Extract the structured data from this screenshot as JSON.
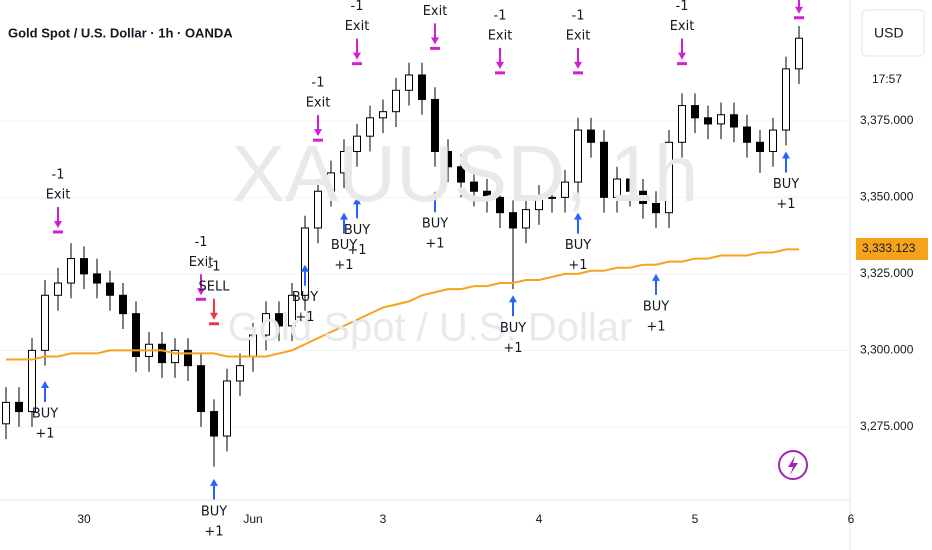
{
  "chart_data": {
    "type": "candlestick",
    "title": "Gold Spot / U.S. Dollar · 1h · OANDA",
    "watermark": "XAUUSD, 1h",
    "watermark_subtitle": "Gold Spot / U.S. Dollar",
    "currency": "USD",
    "countdown": "17:57",
    "ma_label": {
      "value": 3333.123,
      "label": "3,333.123"
    },
    "categories": [
      null,
      null,
      null,
      null,
      null,
      null,
      "30",
      null,
      null,
      null,
      null,
      null,
      null,
      null,
      null,
      null,
      null,
      null,
      null,
      "Jun",
      null,
      null,
      null,
      null,
      null,
      null,
      null,
      null,
      null,
      "3",
      null,
      null,
      null,
      null,
      null,
      null,
      null,
      null,
      null,
      null,
      null,
      "4",
      null,
      null,
      null,
      null,
      null,
      null,
      null,
      null,
      null,
      null,
      null,
      "5",
      null,
      null,
      null,
      null,
      null,
      null,
      null,
      null,
      null,
      null,
      null,
      "6"
    ],
    "open": [
      3276,
      3283,
      3280,
      3300,
      3318,
      3322,
      3330,
      3325,
      3322,
      3318,
      3312,
      3298,
      3302,
      3296,
      3300,
      3295,
      3280,
      3272,
      3290,
      3298,
      3305,
      3312,
      3308,
      3318,
      3340,
      3352,
      3358,
      3365,
      3370,
      3376,
      3378,
      3385,
      3390,
      3382,
      3365,
      3360,
      3355,
      3352,
      3350,
      3345,
      3340,
      3346,
      3350,
      3350,
      3355,
      3372,
      3368,
      3350,
      3356,
      3352,
      3348,
      3345,
      3368,
      3380,
      3376,
      3374,
      3377,
      3373,
      3368,
      3365,
      3372,
      3392,
      null,
      null,
      null,
      null
    ],
    "high": [
      3288,
      3288,
      3304,
      3323,
      3327,
      3335,
      3334,
      3330,
      3326,
      3322,
      3316,
      3306,
      3306,
      3304,
      3304,
      3299,
      3284,
      3294,
      3299,
      3309,
      3316,
      3316,
      3322,
      3344,
      3356,
      3362,
      3369,
      3374,
      3380,
      3382,
      3389,
      3394,
      3394,
      3386,
      3369,
      3364,
      3359,
      3356,
      3354,
      3349,
      3350,
      3354,
      3354,
      3359,
      3376,
      3376,
      3372,
      3360,
      3360,
      3356,
      3352,
      3372,
      3384,
      3384,
      3380,
      3381,
      3381,
      3377,
      3372,
      3376,
      3396,
      3406,
      null,
      null,
      null,
      null
    ],
    "low": [
      3271,
      3275,
      3275,
      3295,
      3313,
      3317,
      3320,
      3317,
      3313,
      3307,
      3293,
      3293,
      3291,
      3291,
      3290,
      3275,
      3262,
      3267,
      3285,
      3293,
      3300,
      3303,
      3303,
      3313,
      3335,
      3347,
      3353,
      3360,
      3365,
      3371,
      3373,
      3380,
      3377,
      3360,
      3355,
      3350,
      3347,
      3345,
      3340,
      3320,
      3335,
      3341,
      3345,
      3345,
      3350,
      3363,
      3345,
      3345,
      3347,
      3343,
      3340,
      3340,
      3363,
      3371,
      3369,
      3369,
      3368,
      3363,
      3358,
      3360,
      3367,
      3387,
      null,
      null,
      null,
      null
    ],
    "close": [
      3283,
      3280,
      3300,
      3318,
      3322,
      3330,
      3325,
      3322,
      3318,
      3312,
      3298,
      3302,
      3296,
      3300,
      3295,
      3280,
      3272,
      3290,
      3295,
      3305,
      3312,
      3308,
      3318,
      3340,
      3352,
      3358,
      3365,
      3370,
      3376,
      3378,
      3385,
      3390,
      3382,
      3365,
      3360,
      3355,
      3352,
      3350,
      3345,
      3340,
      3346,
      3350,
      3350,
      3355,
      3372,
      3368,
      3350,
      3356,
      3352,
      3348,
      3345,
      3368,
      3380,
      3376,
      3374,
      3377,
      3373,
      3368,
      3365,
      3372,
      3392,
      3402,
      null,
      null,
      null,
      null
    ],
    "ma": {
      "color": "#f7a21b",
      "values": [
        3297,
        3297,
        3297,
        3298,
        3298,
        3299,
        3299,
        3299,
        3300,
        3300,
        3300,
        3300,
        3300,
        3299,
        3299,
        3299,
        3299,
        3298,
        3298,
        3298,
        3298,
        3299,
        3300,
        3302,
        3304,
        3306,
        3308,
        3310,
        3312,
        3314,
        3315,
        3316,
        3318,
        3319,
        3320,
        3320,
        3321,
        3321,
        3322,
        3322,
        3323,
        3323,
        3324,
        3325,
        3325,
        3326,
        3326,
        3327,
        3327,
        3328,
        3328,
        3329,
        3329,
        3330,
        3330,
        3331,
        3331,
        3331,
        3332,
        3332,
        3333,
        3333,
        null,
        null,
        null,
        null
      ]
    },
    "signals": {
      "buy": {
        "label": "BUY",
        "qty": "+1",
        "color": "#2962ff",
        "values": [
          null,
          null,
          null,
          3290,
          null,
          null,
          null,
          null,
          null,
          null,
          null,
          null,
          null,
          null,
          null,
          null,
          3258,
          null,
          null,
          null,
          null,
          null,
          null,
          3328,
          null,
          null,
          3345,
          3350,
          null,
          null,
          null,
          null,
          null,
          3352,
          null,
          null,
          null,
          null,
          null,
          3318,
          null,
          null,
          null,
          null,
          3345,
          null,
          null,
          null,
          null,
          null,
          3325,
          null,
          null,
          null,
          null,
          null,
          null,
          null,
          null,
          null,
          3365,
          null,
          null,
          null,
          null,
          null
        ]
      },
      "exit": {
        "label": "Exit",
        "qty": "-1",
        "color": "#d21fd6",
        "values": [
          null,
          null,
          null,
          null,
          3340,
          null,
          null,
          null,
          null,
          null,
          null,
          null,
          null,
          null,
          null,
          3318,
          null,
          null,
          null,
          null,
          null,
          null,
          null,
          null,
          3370,
          null,
          null,
          3395,
          null,
          null,
          null,
          null,
          null,
          3400,
          null,
          null,
          null,
          null,
          3392,
          null,
          null,
          null,
          null,
          null,
          3392,
          null,
          null,
          null,
          null,
          null,
          null,
          null,
          3395,
          null,
          null,
          null,
          null,
          null,
          null,
          null,
          null,
          3410,
          null,
          null,
          null,
          null
        ]
      },
      "sell": {
        "label": "SELL",
        "qty": "-1",
        "color": "#f23645",
        "values": [
          null,
          null,
          null,
          null,
          null,
          null,
          null,
          null,
          null,
          null,
          null,
          null,
          null,
          null,
          null,
          null,
          3310,
          null,
          null,
          null,
          null,
          null,
          null,
          null,
          null,
          null,
          null,
          null,
          null,
          null,
          null,
          null,
          null,
          null,
          null,
          null,
          null,
          null,
          null,
          null,
          null,
          null,
          null,
          null,
          null,
          null,
          null,
          null,
          null,
          null,
          null,
          null,
          null,
          null,
          null,
          null,
          null,
          null,
          null,
          null,
          null,
          null,
          null,
          null,
          null,
          null
        ]
      }
    },
    "ylim": [
      3251.1,
      3414.5
    ],
    "yticks": [
      {
        "value": 3275,
        "label": "3,275.000"
      },
      {
        "value": 3300,
        "label": "3,300.000"
      },
      {
        "value": 3325,
        "label": "3,325.000"
      },
      {
        "value": 3350,
        "label": "3,350.000"
      },
      {
        "value": 3375,
        "label": "3,375.000"
      }
    ],
    "grid": true
  }
}
